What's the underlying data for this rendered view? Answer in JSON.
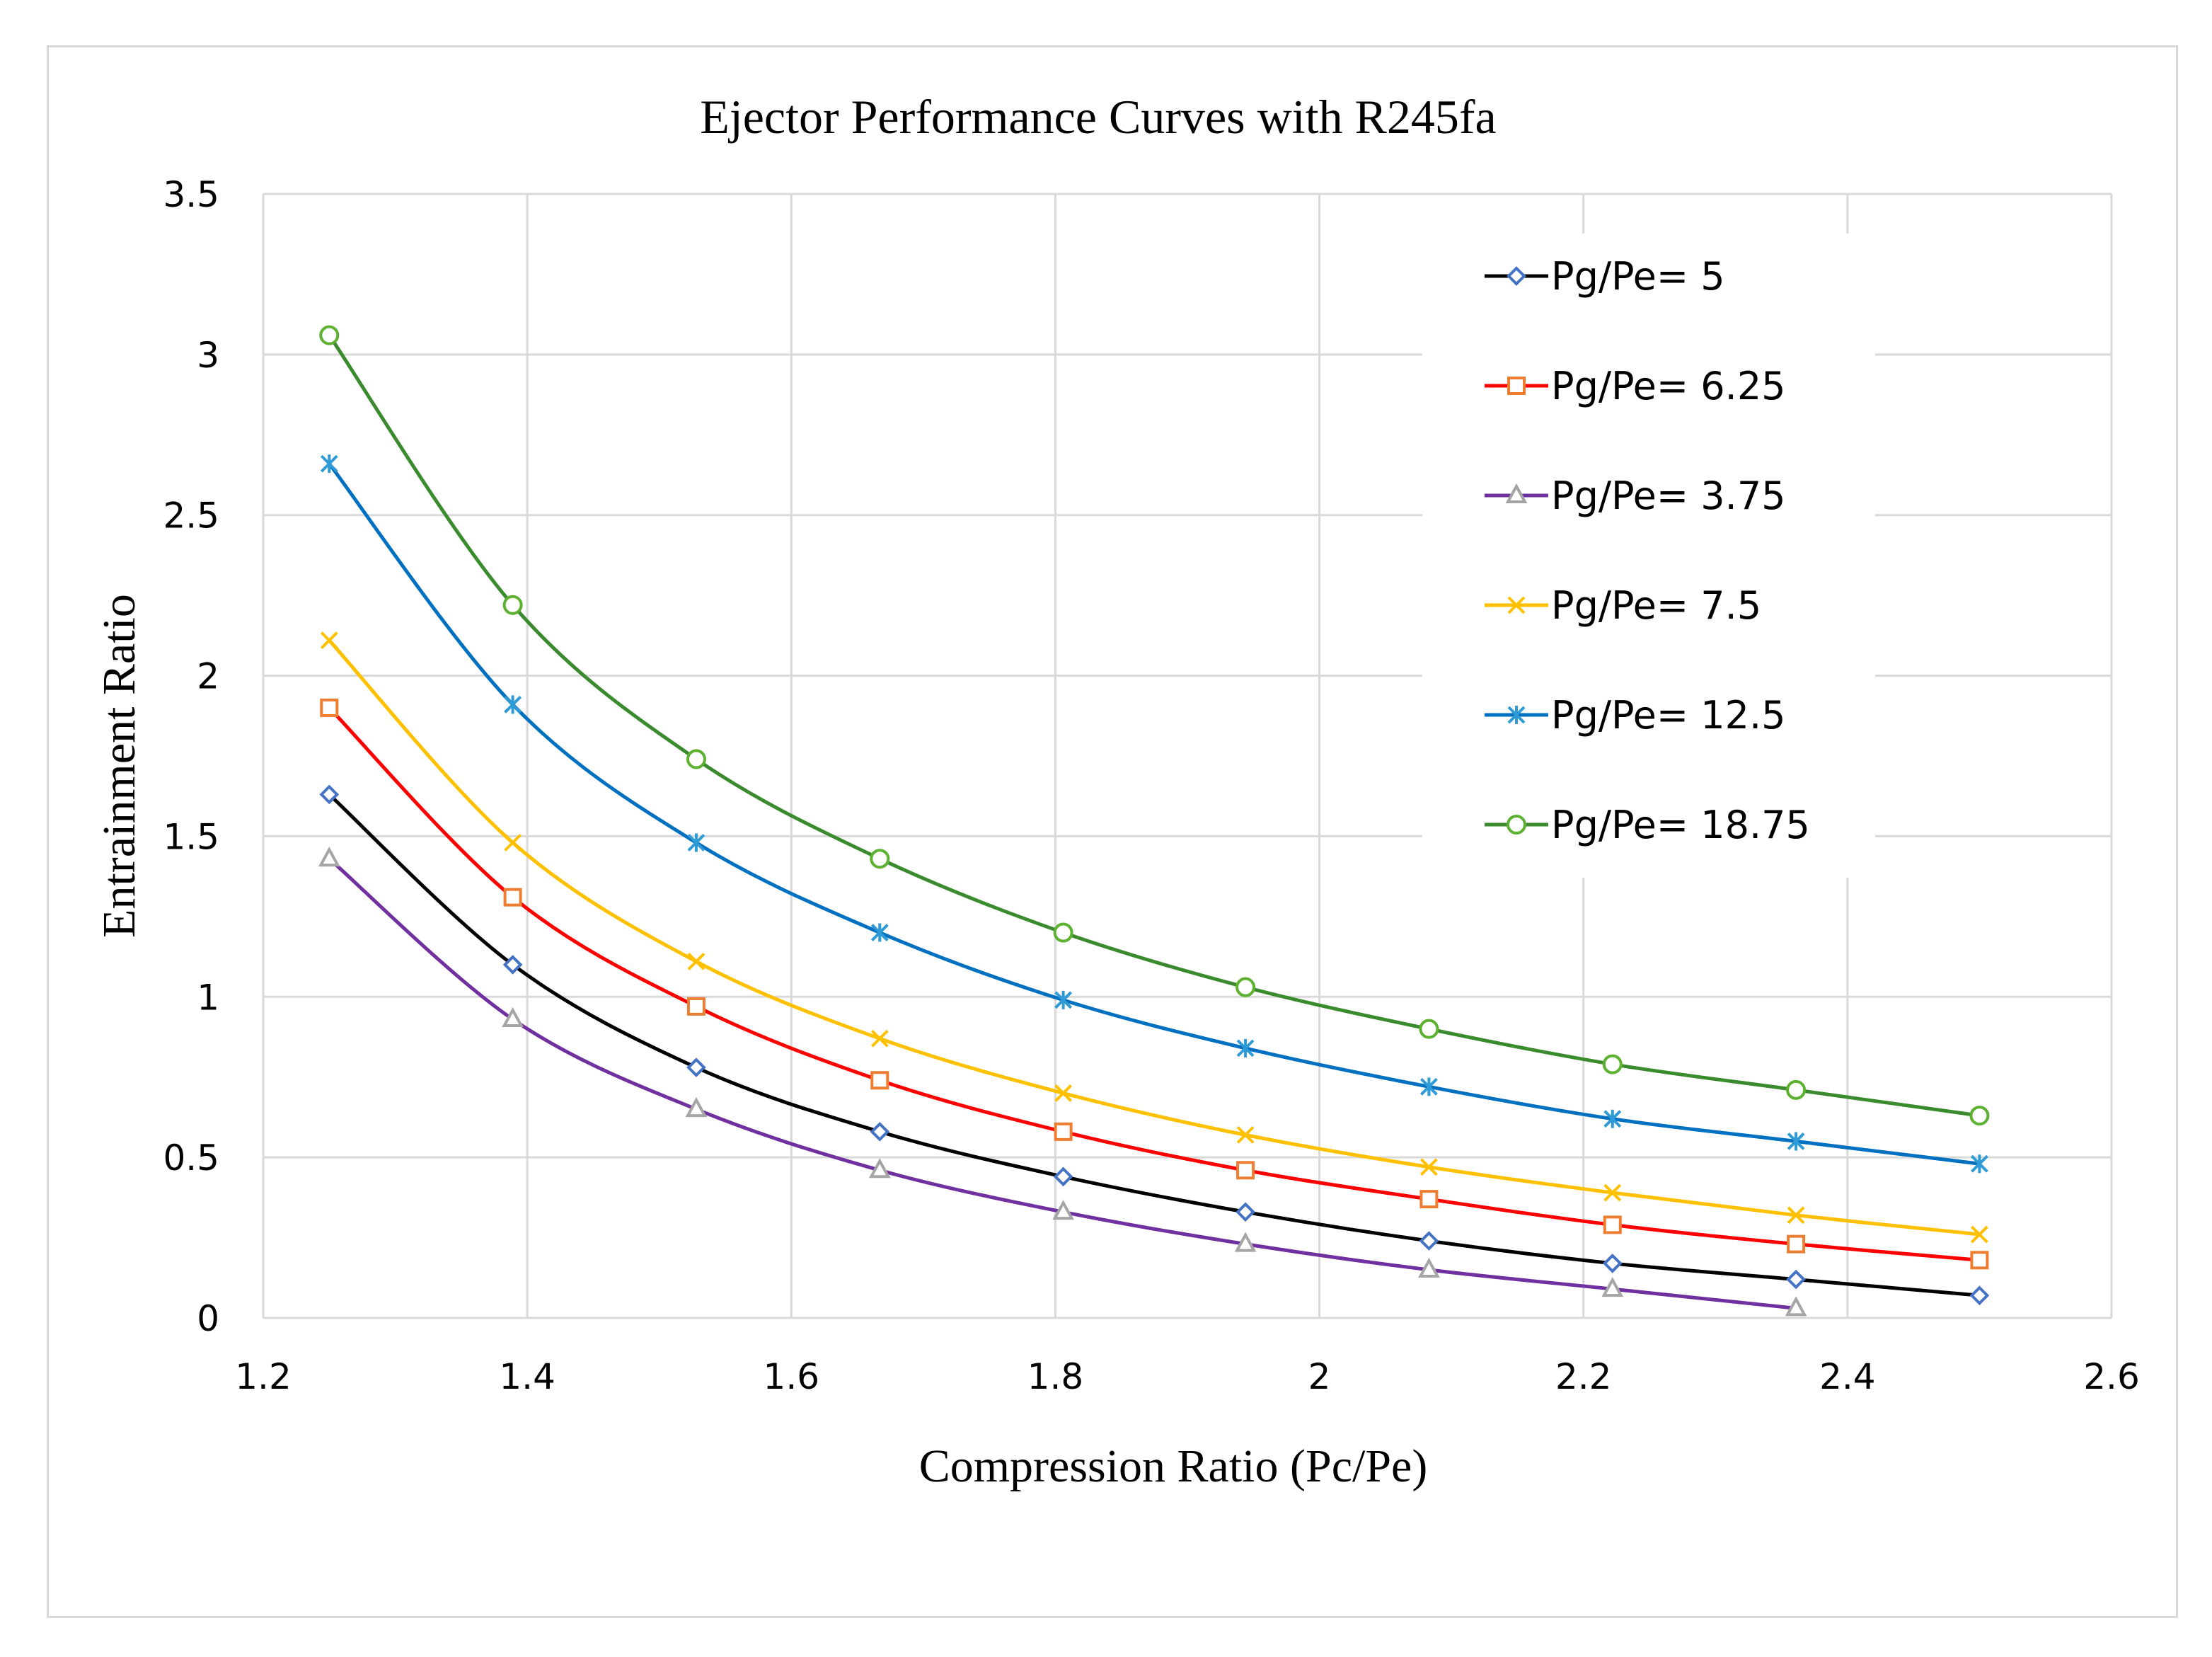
{
  "chart_data": {
    "type": "line",
    "title": "Ejector Performance Curves with R245fa",
    "xlabel": "Compression Ratio (Pc/Pe)",
    "ylabel": "Entrainment Ratio",
    "xlim": [
      1.2,
      2.6
    ],
    "ylim": [
      0,
      3.5
    ],
    "x_ticks": [
      "1.2",
      "1.4",
      "1.6",
      "1.8",
      "2",
      "2.2",
      "2.4",
      "2.6"
    ],
    "y_ticks": [
      "0",
      "0.5",
      "1",
      "1.5",
      "2",
      "2.5",
      "3",
      "3.5"
    ],
    "grid": true,
    "legend_position": "top-right",
    "x": [
      1.25,
      1.389,
      1.528,
      1.667,
      1.806,
      1.944,
      2.083,
      2.222,
      2.361,
      2.5
    ],
    "series": [
      {
        "name": "Pg/Pe= 5",
        "line_color": "#000000",
        "marker_color": "#4472c4",
        "marker": "diamond",
        "values": [
          1.63,
          1.1,
          0.78,
          0.58,
          0.44,
          0.33,
          0.24,
          0.17,
          0.12,
          0.07
        ]
      },
      {
        "name": "Pg/Pe= 6.25",
        "line_color": "#ff0000",
        "marker_color": "#ed7d31",
        "marker": "square",
        "values": [
          1.9,
          1.31,
          0.97,
          0.74,
          0.58,
          0.46,
          0.37,
          0.29,
          0.23,
          0.18
        ]
      },
      {
        "name": "Pg/Pe= 3.75",
        "line_color": "#7030a0",
        "marker_color": "#a5a5a5",
        "marker": "triangle",
        "values": [
          1.43,
          0.93,
          0.65,
          0.46,
          0.33,
          0.23,
          0.15,
          0.09,
          0.03,
          null
        ]
      },
      {
        "name": "Pg/Pe= 7.5",
        "line_color": "#ffc000",
        "marker_color": "#ffc000",
        "marker": "x",
        "values": [
          2.11,
          1.48,
          1.11,
          0.87,
          0.7,
          0.57,
          0.47,
          0.39,
          0.32,
          0.26
        ]
      },
      {
        "name": "Pg/Pe= 12.5",
        "line_color": "#0070c0",
        "marker_color": "#2e9bd6",
        "marker": "star",
        "values": [
          2.66,
          1.91,
          1.48,
          1.2,
          0.99,
          0.84,
          0.72,
          0.62,
          0.55,
          0.48
        ]
      },
      {
        "name": "Pg/Pe= 18.75",
        "line_color": "#3a8a2e",
        "marker_color": "#5cb130",
        "marker": "circle",
        "values": [
          3.06,
          2.22,
          1.74,
          1.43,
          1.2,
          1.03,
          0.9,
          0.79,
          0.71,
          0.63
        ]
      }
    ]
  }
}
